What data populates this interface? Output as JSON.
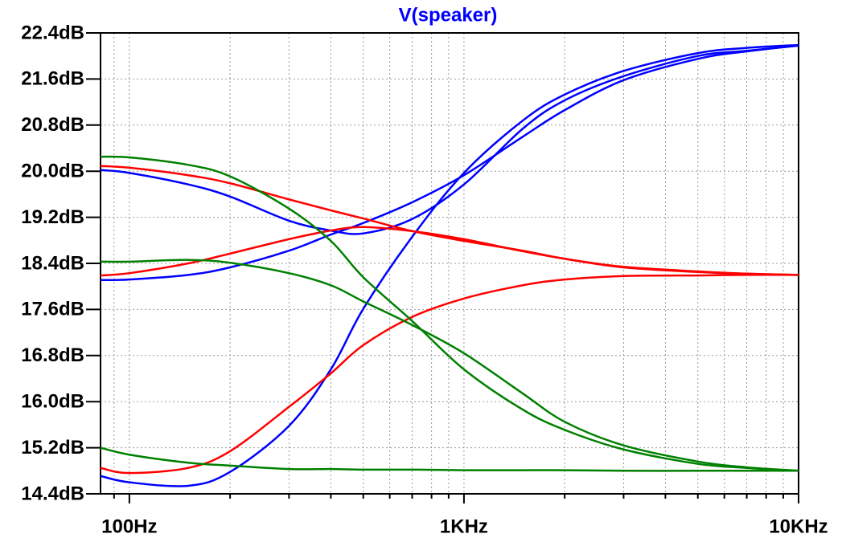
{
  "chart_data": {
    "type": "line",
    "title": "V(speaker)",
    "title_color": "#0000ff",
    "x": [
      82,
      100,
      150,
      200,
      300,
      400,
      500,
      700,
      1000,
      1500,
      2000,
      3000,
      5000,
      7000,
      10000
    ],
    "xscale": "log",
    "xlim": [
      82,
      10000
    ],
    "xticks": [
      {
        "value": 100,
        "label": "100Hz"
      },
      {
        "value": 1000,
        "label": "1KHz"
      },
      {
        "value": 10000,
        "label": "10KHz"
      }
    ],
    "ylim": [
      14.4,
      22.4
    ],
    "yticks": [
      {
        "value": 14.4,
        "label": "14.4dB"
      },
      {
        "value": 15.2,
        "label": "15.2dB"
      },
      {
        "value": 16.0,
        "label": "16.0dB"
      },
      {
        "value": 16.8,
        "label": "16.8dB"
      },
      {
        "value": 17.6,
        "label": "17.6dB"
      },
      {
        "value": 18.4,
        "label": "18.4dB"
      },
      {
        "value": 19.2,
        "label": "19.2dB"
      },
      {
        "value": 20.0,
        "label": "20.0dB"
      },
      {
        "value": 20.8,
        "label": "20.8dB"
      },
      {
        "value": 21.6,
        "label": "21.6dB"
      },
      {
        "value": 22.4,
        "label": "22.4dB"
      }
    ],
    "grid": true,
    "series": [
      {
        "color": "#0000ff",
        "values": [
          20.02,
          19.97,
          19.77,
          19.56,
          19.14,
          18.97,
          18.92,
          19.17,
          19.77,
          20.74,
          21.23,
          21.65,
          22.0,
          22.09,
          22.18
        ]
      },
      {
        "color": "#0000ff",
        "values": [
          18.11,
          18.12,
          18.2,
          18.33,
          18.62,
          18.9,
          19.1,
          19.46,
          19.93,
          20.6,
          21.06,
          21.58,
          21.95,
          22.08,
          22.18
        ]
      },
      {
        "color": "#0000ff",
        "values": [
          14.71,
          14.6,
          14.54,
          14.78,
          15.58,
          16.56,
          17.61,
          18.86,
          19.97,
          20.88,
          21.33,
          21.74,
          22.05,
          22.14,
          22.19
        ]
      },
      {
        "color": "#ff0000",
        "values": [
          20.09,
          20.06,
          19.93,
          19.79,
          19.51,
          19.32,
          19.18,
          18.96,
          18.79,
          18.62,
          18.48,
          18.34,
          18.26,
          18.22,
          18.2
        ]
      },
      {
        "color": "#ff0000",
        "values": [
          18.19,
          18.23,
          18.4,
          18.57,
          18.82,
          18.97,
          19.03,
          18.96,
          18.82,
          18.61,
          18.48,
          18.33,
          18.25,
          18.22,
          18.2
        ]
      },
      {
        "color": "#ff0000",
        "values": [
          14.85,
          14.76,
          14.85,
          15.14,
          15.91,
          16.49,
          16.98,
          17.47,
          17.79,
          18.02,
          18.12,
          18.18,
          18.19,
          18.2,
          18.2
        ]
      },
      {
        "color": "#008000",
        "values": [
          20.25,
          20.24,
          20.11,
          19.91,
          19.35,
          18.79,
          18.16,
          17.4,
          16.56,
          15.86,
          15.51,
          15.17,
          14.92,
          14.85,
          14.8
        ]
      },
      {
        "color": "#008000",
        "values": [
          18.43,
          18.43,
          18.46,
          18.41,
          18.23,
          18.02,
          17.74,
          17.33,
          16.84,
          16.14,
          15.65,
          15.24,
          14.96,
          14.86,
          14.8
        ]
      },
      {
        "color": "#008000",
        "values": [
          15.2,
          15.08,
          14.94,
          14.89,
          14.83,
          14.83,
          14.82,
          14.82,
          14.81,
          14.81,
          14.81,
          14.8,
          14.8,
          14.8,
          14.8
        ]
      }
    ]
  }
}
